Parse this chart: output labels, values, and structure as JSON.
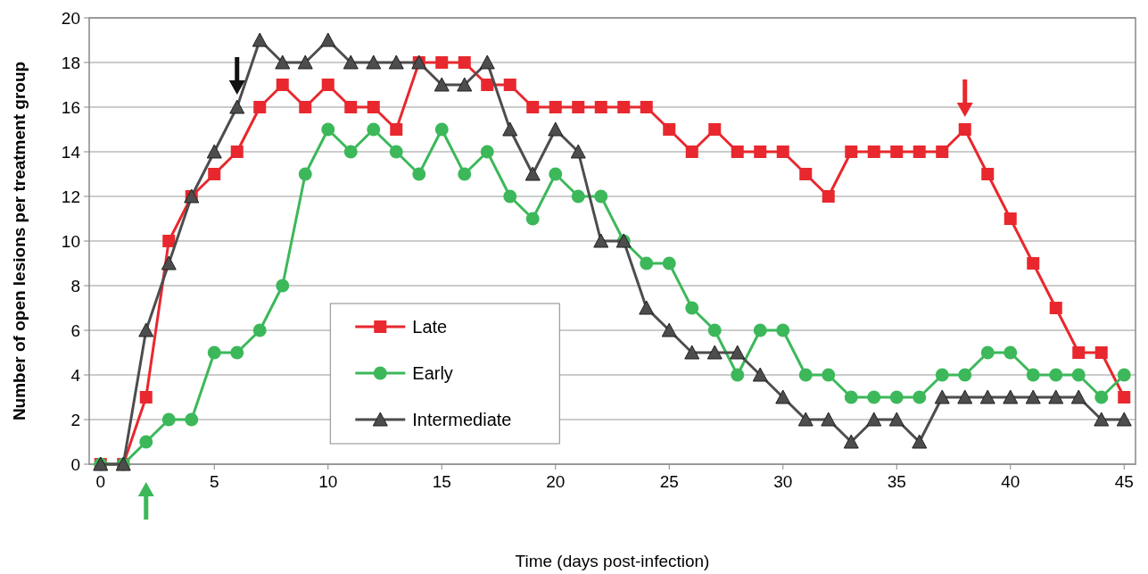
{
  "chart_data": {
    "type": "line",
    "xlabel": "Time (days post-infection)",
    "ylabel": "Number of open lesions per treatment group",
    "x": [
      0,
      1,
      2,
      3,
      4,
      5,
      6,
      7,
      8,
      9,
      10,
      11,
      12,
      13,
      14,
      15,
      16,
      17,
      18,
      19,
      20,
      21,
      22,
      23,
      24,
      25,
      26,
      27,
      28,
      29,
      30,
      31,
      32,
      33,
      34,
      35,
      36,
      37,
      38,
      39,
      40,
      41,
      42,
      43,
      44,
      45
    ],
    "series": [
      {
        "name": "Late",
        "color": "#e8282e",
        "marker": "square",
        "values": [
          0,
          0,
          3,
          10,
          12,
          13,
          14,
          16,
          17,
          16,
          17,
          16,
          16,
          15,
          18,
          18,
          18,
          17,
          17,
          16,
          16,
          16,
          16,
          16,
          16,
          15,
          14,
          15,
          14,
          14,
          14,
          13,
          12,
          14,
          14,
          14,
          14,
          14,
          15,
          13,
          11,
          9,
          7,
          5,
          5,
          3
        ]
      },
      {
        "name": "Early",
        "color": "#3cb85a",
        "marker": "circle",
        "values": [
          0,
          0,
          1,
          2,
          2,
          5,
          5,
          6,
          8,
          13,
          15,
          14,
          15,
          14,
          13,
          15,
          13,
          14,
          12,
          11,
          13,
          12,
          12,
          10,
          9,
          9,
          7,
          6,
          4,
          6,
          6,
          4,
          4,
          3,
          3,
          3,
          3,
          4,
          4,
          5,
          5,
          4,
          4,
          4,
          3,
          4
        ]
      },
      {
        "name": "Intermediate",
        "color": "#4d4d4d",
        "marker": "triangle",
        "values": [
          0,
          0,
          6,
          9,
          12,
          14,
          16,
          19,
          18,
          18,
          19,
          18,
          18,
          18,
          18,
          17,
          17,
          18,
          15,
          13,
          15,
          14,
          10,
          10,
          7,
          6,
          5,
          5,
          5,
          4,
          3,
          2,
          2,
          1,
          2,
          2,
          1,
          3,
          3,
          3,
          3,
          3,
          3,
          3,
          2,
          2
        ]
      }
    ],
    "xlim": [
      -0.5,
      45.5
    ],
    "xticks": [
      0,
      5,
      10,
      15,
      20,
      25,
      30,
      35,
      40,
      45
    ],
    "ylim": [
      0,
      20
    ],
    "yticks": [
      0,
      2,
      4,
      6,
      8,
      10,
      12,
      14,
      16,
      18,
      20
    ],
    "grid": "y",
    "legend": "bottom left",
    "line_style": "solid"
  }
}
